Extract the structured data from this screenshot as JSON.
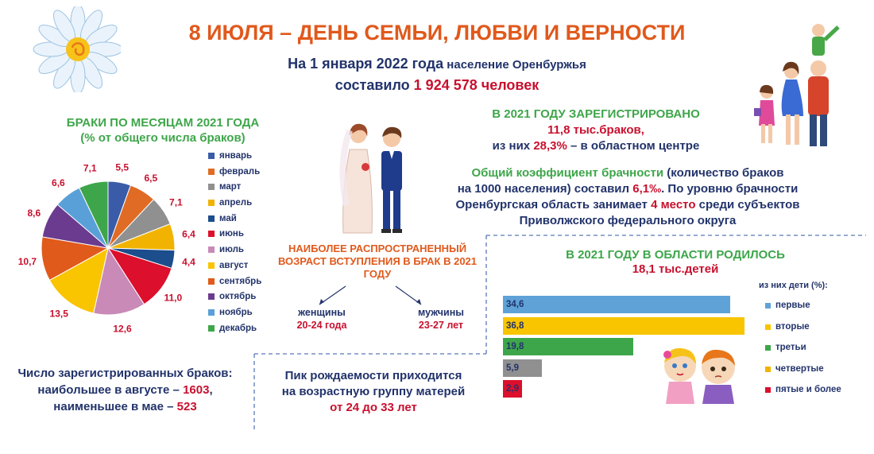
{
  "header": {
    "title": "8 ИЮЛЯ – ДЕНЬ СЕМЬИ, ЛЮБВИ И ВЕРНОСТИ",
    "population_line1_a": "На 1 января 2022 года",
    "population_line1_b": " население Оренбуржья",
    "population_line2_a": "составило ",
    "population_line2_b": "1 924 578 человек"
  },
  "registration": {
    "line1": "В 2021 ГОДУ ЗАРЕГИСТРИРОВАНО",
    "line2": "11,8 тыс.браков,",
    "line3_a": "из них ",
    "line3_b": "28,3%",
    "line3_c": " – в областном центре"
  },
  "coefficient": {
    "part1": "Общий коэффициент брачности",
    "part2": " (количество браков",
    "part3": "на 1000 населения) составил ",
    "part4": "6,1‰",
    "part5": ". По уровню брачности",
    "part6": "Оренбургская область занимает ",
    "part7": "4 место",
    "part8": " среди субъектов",
    "part9": "Приволжского федерального округа"
  },
  "marriage_age": {
    "title": "НАИБОЛЕЕ РАСПРОСТРАНЕННЫЙ ВОЗРАСТ ВСТУПЛЕНИЯ В БРАК В 2021 ГОДУ",
    "women_label": "женщины",
    "women_value": "20-24 года",
    "men_label": "мужчины",
    "men_value": "23-27 лет"
  },
  "marriages_stats": {
    "line1": "Число зарегистрированных браков:",
    "line2_a": "наибольшее в августе – ",
    "line2_b": "1603",
    "line2_c": ",",
    "line3_a": "наименьшее в мае – ",
    "line3_b": "523"
  },
  "birth_peak": {
    "line1": "Пик рождаемости приходится",
    "line2": "на возрастную группу матерей",
    "line3": "от 24 до 33 лет"
  },
  "births": {
    "line1": "В 2021 ГОДУ В ОБЛАСТИ РОДИЛОСЬ",
    "line2": "18,1 тыс.детей",
    "note": "из них дети (%):"
  },
  "chart_data": [
    {
      "type": "pie",
      "title": "БРАКИ ПО МЕСЯЦАМ 2021 ГОДА",
      "subtitle": "(% от общего числа браков)",
      "categories": [
        "январь",
        "февраль",
        "март",
        "апрель",
        "май",
        "июнь",
        "июль",
        "август",
        "сентябрь",
        "октябрь",
        "ноябрь",
        "декабрь"
      ],
      "values": [
        5.5,
        6.5,
        7.1,
        6.4,
        4.4,
        11.0,
        12.6,
        13.5,
        10.7,
        8.6,
        6.6,
        7.1
      ],
      "value_labels": [
        "5,5",
        "6,5",
        "7,1",
        "6,4",
        "4,4",
        "11,0",
        "12,6",
        "13,5",
        "10,7",
        "8,6",
        "6,6",
        "7,1"
      ],
      "colors": [
        "#3a5ca8",
        "#e06b24",
        "#909090",
        "#f1b300",
        "#1c4d8c",
        "#dc0f2c",
        "#c98ab8",
        "#f9c400",
        "#e05a1c",
        "#6a3b8f",
        "#5aa0d8",
        "#3ea64a"
      ],
      "legend_placement": "right"
    },
    {
      "type": "bar",
      "orientation": "horizontal",
      "categories": [
        "первые",
        "вторые",
        "третьи",
        "четвертые",
        "пятые и более"
      ],
      "values": [
        34.6,
        36.8,
        19.8,
        5.9,
        2.9
      ],
      "value_labels": [
        "34,6",
        "36,8",
        "19,8",
        "5,9",
        "2,9"
      ],
      "colors": [
        "#5ea2d8",
        "#f9c400",
        "#3ea64a",
        "#909090",
        "#dc0f2c"
      ],
      "legend_colors": [
        "#5ea2d8",
        "#f9c400",
        "#3ea64a",
        "#f1b300",
        "#dc0f2c"
      ],
      "xlim": [
        0,
        36.8
      ],
      "legend_placement": "right"
    }
  ]
}
